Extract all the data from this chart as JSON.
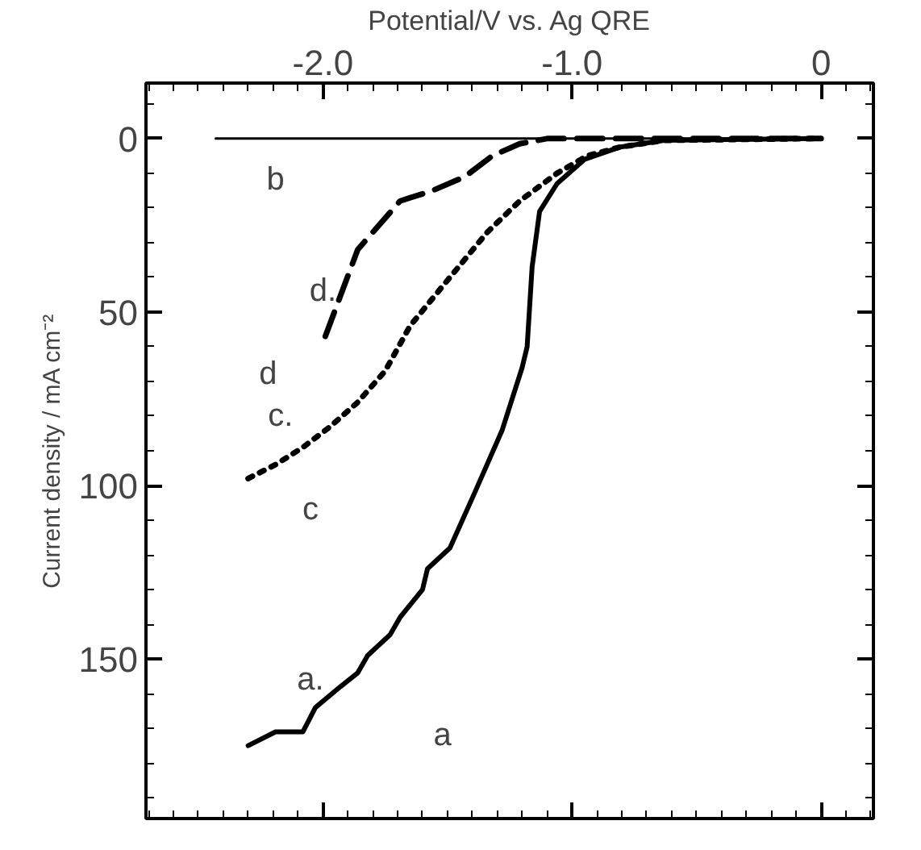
{
  "chart_data": {
    "type": "line",
    "xlabel": "Potential/V vs. Ag QRE",
    "ylabel": "Current density / mA cm⁻²",
    "xlim": [
      -2.71,
      0.21
    ],
    "xticks": [
      {
        "value": -2.0,
        "label": "-2.0"
      },
      {
        "value": -1.0,
        "label": "-1.0"
      },
      0
    ],
    "ylim": [
      196,
      -16
    ],
    "yticks": [
      0,
      50,
      100,
      150
    ],
    "grid": false,
    "marker": "none",
    "series": [
      {
        "color": "#000000",
        "line_style": "solid",
        "x": [
          -2.3,
          -2.19,
          -2.08,
          -2.03,
          -1.93,
          -1.86,
          -1.82,
          -1.73,
          -1.69,
          -1.6,
          -1.58,
          -1.49,
          -1.39,
          -1.28,
          -1.2,
          -1.18,
          -1.16,
          -1.13,
          -1.06,
          -0.95,
          -0.81,
          -0.63,
          -0.03,
          0
        ],
        "values": [
          175,
          171,
          171,
          164,
          158,
          154,
          149,
          143,
          138,
          130,
          124,
          118,
          102,
          84,
          66,
          60,
          37,
          21,
          13,
          6,
          2.5,
          0.5,
          0,
          0
        ]
      },
      {
        "color": "#000000",
        "line_style": "solid",
        "x": [
          -2.43,
          0
        ],
        "values": [
          0,
          0
        ]
      },
      {
        "color": "#000000",
        "line_style": "dotted",
        "x": [
          -2.3,
          -2.19,
          -2.08,
          -1.97,
          -1.86,
          -1.75,
          -1.65,
          -1.49,
          -1.34,
          -1.21,
          -1.06,
          -0.94,
          -0.81,
          -0.63,
          -0.03
        ],
        "values": [
          98,
          94,
          89,
          83,
          76,
          67,
          54,
          40,
          27,
          18,
          10,
          5,
          2.5,
          0.5,
          0
        ]
      },
      {
        "color": "#000000",
        "line_style": "dashed",
        "x": [
          -1.99,
          -1.86,
          -1.69,
          -1.56,
          -1.43,
          -1.32,
          -1.21,
          -1.1,
          -0.6,
          0
        ],
        "values": [
          57,
          32,
          18,
          15,
          11,
          5,
          1.5,
          0,
          0,
          0
        ]
      }
    ],
    "annotations": [
      "b",
      "d.",
      "d",
      "c.",
      "c",
      "a.",
      "a"
    ]
  }
}
